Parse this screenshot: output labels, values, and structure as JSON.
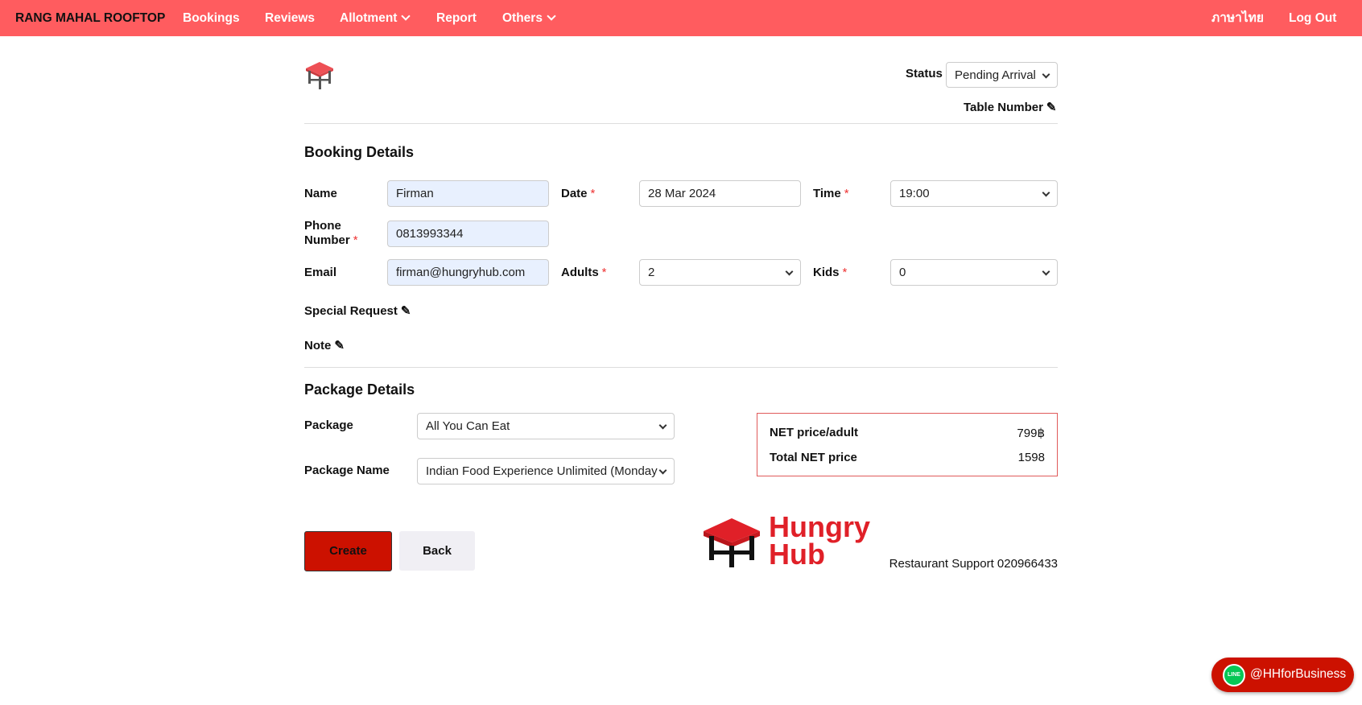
{
  "nav": {
    "brand": "RANG MAHAL ROOFTOP",
    "items": [
      "Bookings",
      "Reviews",
      "Allotment",
      "Report",
      "Others"
    ],
    "language": "ภาษาไทย",
    "logout": "Log Out",
    "color": "#ff5c5f"
  },
  "status": {
    "label": "Status",
    "value": "Pending Arrival"
  },
  "table_number": {
    "label": "Table Number"
  },
  "booking": {
    "heading": "Booking Details",
    "name": {
      "label": "Name",
      "value": "Firman"
    },
    "phone": {
      "label_1": "Phone",
      "label_2": "Number",
      "value": "0813993344"
    },
    "email": {
      "label": "Email",
      "value": "firman@hungryhub.com"
    },
    "date": {
      "label": "Date",
      "value": "28 Mar 2024"
    },
    "time": {
      "label": "Time",
      "value": "19:00"
    },
    "adults": {
      "label": "Adults",
      "value": "2"
    },
    "kids": {
      "label": "Kids",
      "value": "0"
    },
    "required_mark": "*",
    "special_request": "Special Request",
    "note": "Note"
  },
  "package": {
    "heading": "Package Details",
    "package_label": "Package",
    "package_value": "All You Can Eat",
    "name_label": "Package Name",
    "name_value": "Indian Food Experience Unlimited (Monday"
  },
  "price": {
    "net_label": "NET price/adult",
    "net_value": "799฿",
    "total_label": "Total NET price",
    "total_value": "1598"
  },
  "actions": {
    "create": "Create",
    "back": "Back"
  },
  "footer": {
    "logo_line1": "Hungry",
    "logo_line2": "Hub",
    "support": "Restaurant Support 020966433"
  },
  "line": {
    "label": "@HHforBusiness",
    "icon_text": "LINE"
  }
}
